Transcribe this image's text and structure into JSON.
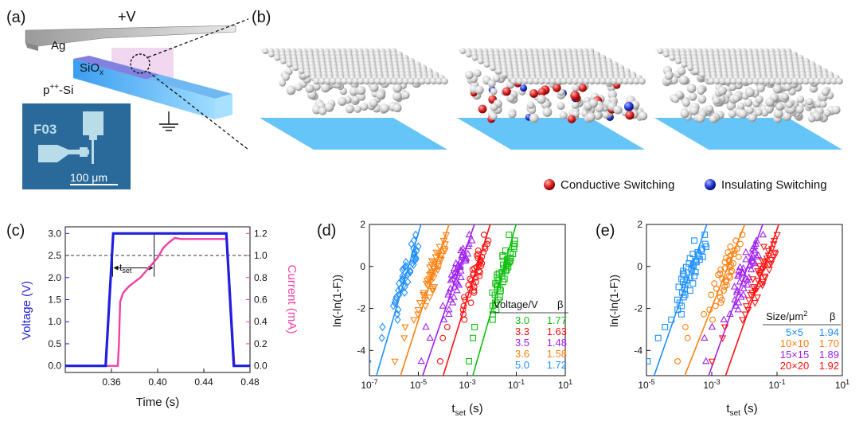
{
  "colors": {
    "blue_axis": "#1f1fe0",
    "pink_axis": "#f13ea6",
    "series_blue": "#1e90ff",
    "series_orange": "#ff7f0e",
    "series_purple": "#a020f0",
    "series_red": "#ff1010",
    "series_green": "#10c010",
    "substrate": "#49b6f0",
    "atom": "#d8d8d8",
    "atom_red": "#e23030",
    "atom_blue": "#2a3ee0"
  },
  "panel_a": {
    "label": "(a)",
    "voltage": "+V",
    "ag": "Ag",
    "siox": "SiO",
    "siox_sub": "x",
    "psi_pre": "p",
    "psi_sup": "++",
    "psi_post": "-Si",
    "chip_id": "F03",
    "scale": "100 μm"
  },
  "panel_b": {
    "label": "(b)",
    "legend": [
      {
        "label": "Conductive Switching",
        "color": "red"
      },
      {
        "label": "Insulating Switching",
        "color": "blue"
      }
    ]
  },
  "chart_data": [
    {
      "panel": "(c)",
      "type": "line",
      "xlabel": "Time (s)",
      "ylabel_left": "Voltage (V)",
      "ylabel_right": "Current (mA)",
      "annotation": "t",
      "annotation_sub": "set",
      "xlim": [
        0.32,
        0.48
      ],
      "ylim_left": [
        -0.15,
        3.15
      ],
      "ylim_right": [
        -0.06,
        1.26
      ],
      "xticks": [
        0.36,
        0.4,
        0.44,
        0.48
      ],
      "xtick_labels": [
        "0.36",
        "0.40",
        "0.44",
        "0.48"
      ],
      "yticks_left": [
        0.0,
        0.5,
        1.0,
        1.5,
        2.0,
        2.5,
        3.0
      ],
      "ytick_labels_left": [
        "0.0",
        "0.5",
        "1.0",
        "1.5",
        "2.0",
        "2.5",
        "3.0"
      ],
      "yticks_right": [
        0.0,
        0.2,
        0.4,
        0.6,
        0.8,
        1.0,
        1.2
      ],
      "ytick_labels_right": [
        "0.0",
        "0.2",
        "0.4",
        "0.6",
        "0.8",
        "1.0",
        "1.2"
      ],
      "threshold_voltage": 2.5,
      "t_start": 0.361,
      "t_end": 0.397,
      "series": [
        {
          "axis": "left",
          "x": [
            0.32,
            0.355,
            0.3615,
            0.4595,
            0.466,
            0.48
          ],
          "y": [
            0.0,
            0.0,
            3.0,
            3.0,
            0.0,
            0.0
          ]
        },
        {
          "axis": "right",
          "x": [
            0.32,
            0.3655,
            0.3665,
            0.3675,
            0.37,
            0.375,
            0.38,
            0.385,
            0.39,
            0.395,
            0.4,
            0.405,
            0.41,
            0.415,
            0.42,
            0.46,
            0.4665,
            0.48
          ],
          "y": [
            0.0,
            0.0,
            0.2,
            0.58,
            0.66,
            0.72,
            0.76,
            0.8,
            0.86,
            0.92,
            0.98,
            1.07,
            1.12,
            1.16,
            1.15,
            1.15,
            0.0,
            0.0
          ]
        }
      ]
    },
    {
      "panel": "(d)",
      "type": "scatter",
      "xscale": "log",
      "xlabel": "t",
      "xlabel_sub": "set",
      "xlabel_unit": " (s)",
      "ylabel": "ln(-ln(1-F))",
      "xlim_exp": [
        -7,
        1
      ],
      "ylim": [
        -5.2,
        2.0
      ],
      "xtick_exps": [
        -7,
        -5,
        -3,
        -1,
        1
      ],
      "xtick_base": "10",
      "xtick_labels": [
        "-7",
        "-5",
        "-3",
        "-1",
        "1"
      ],
      "yticks": [
        2,
        0,
        -2,
        -4
      ],
      "ytick_labels": [
        "2",
        "0",
        "-2",
        "-4"
      ],
      "legend_title": "Voltage/V",
      "legend_beta": "β",
      "series": [
        {
          "name": "5.0",
          "beta": "1.72",
          "marker": "diamond",
          "color": "#1e90ff",
          "center_exp": -5.4
        },
        {
          "name": "3.6",
          "beta": "1.58",
          "marker": "triangle-down",
          "color": "#ff7f0e",
          "center_exp": -4.3
        },
        {
          "name": "3.5",
          "beta": "1.48",
          "marker": "triangle-up",
          "color": "#a020f0",
          "center_exp": -3.3
        },
        {
          "name": "3.3",
          "beta": "1.63",
          "marker": "circle",
          "color": "#ff1010",
          "center_exp": -2.6
        },
        {
          "name": "3.0",
          "beta": "1.77",
          "marker": "square",
          "color": "#10c010",
          "center_exp": -1.5
        }
      ],
      "legend_order": [
        4,
        3,
        2,
        1,
        0
      ]
    },
    {
      "panel": "(e)",
      "type": "scatter",
      "xscale": "log",
      "xlabel": "t",
      "xlabel_sub": "set",
      "xlabel_unit": " (s)",
      "ylabel": "ln(-ln(1-F))",
      "xlim_exp": [
        -5,
        1
      ],
      "ylim": [
        -5.2,
        2.0
      ],
      "xtick_exps": [
        -5,
        -3,
        -1,
        1
      ],
      "xtick_base": "10",
      "xtick_labels": [
        "-5",
        "-3",
        "-1",
        "1"
      ],
      "yticks": [
        2,
        0,
        -2,
        -4
      ],
      "ytick_labels": [
        "2",
        "0",
        "-2",
        "-4"
      ],
      "legend_title": "Size/μm",
      "legend_title_sup": "2",
      "legend_beta": "β",
      "series": [
        {
          "name": "5×5",
          "beta": "1.94",
          "marker": "square",
          "color": "#1e90ff",
          "center_exp": -3.6
        },
        {
          "name": "10×10",
          "beta": "1.70",
          "marker": "circle",
          "color": "#ff7f0e",
          "center_exp": -2.5
        },
        {
          "name": "15×15",
          "beta": "1.89",
          "marker": "triangle-up",
          "color": "#a020f0",
          "center_exp": -1.9
        },
        {
          "name": "20×20",
          "beta": "1.92",
          "marker": "triangle-down",
          "color": "#ff1010",
          "center_exp": -1.4
        }
      ],
      "legend_order": [
        0,
        1,
        2,
        3
      ]
    }
  ]
}
